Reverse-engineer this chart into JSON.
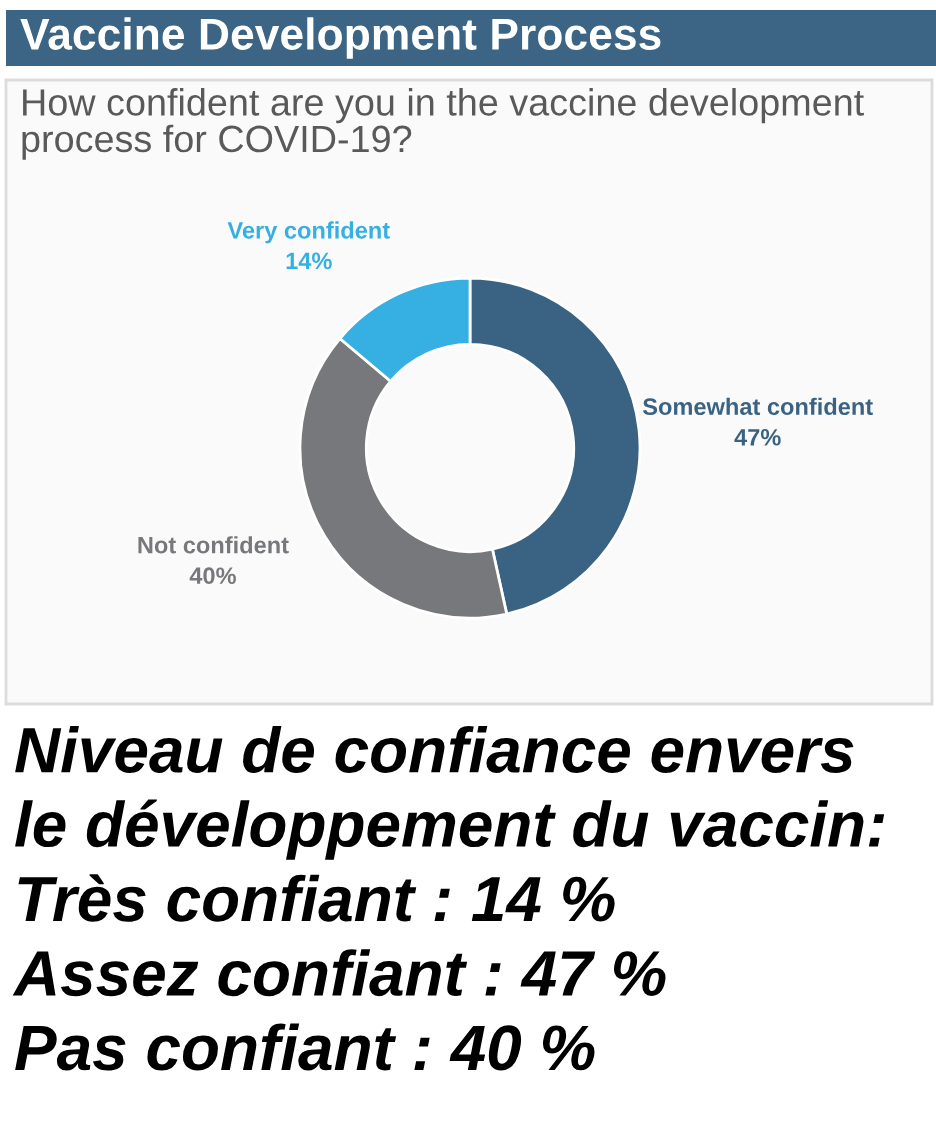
{
  "chart_data": {
    "type": "donut",
    "title": "Vaccine Development Process",
    "subtitle": "How confident are you in the vaccine development process for COVID-19?",
    "categories": [
      "Somewhat confident",
      "Not confident",
      "Very confident"
    ],
    "values": [
      47,
      40,
      14
    ],
    "colors": [
      "#3a6383",
      "#77787b",
      "#36afe2"
    ],
    "value_labels": [
      "47%",
      "40%",
      "14%"
    ],
    "annotations": [
      "Niveau de confiance envers\nle développement du vaccin:",
      "Très confiant : 14 %",
      "Assez confiant : 47 %",
      "Pas confiant : 40 %"
    ]
  }
}
